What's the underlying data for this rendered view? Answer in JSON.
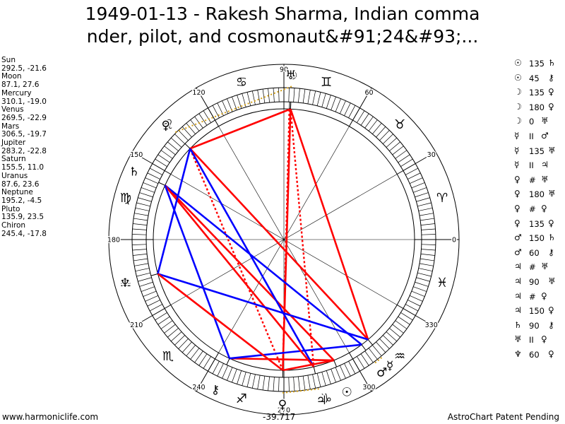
{
  "title": {
    "line1": "1949-01-13 - Rakesh Sharma, Indian comma",
    "line2": "nder, pilot, and cosmonaut&#91;24&#93;..."
  },
  "planets": [
    {
      "name": "Sun",
      "value": "292.5, -21.6"
    },
    {
      "name": "Moon",
      "value": "87.1, 27.6"
    },
    {
      "name": "Mercury",
      "value": "310.1, -19.0"
    },
    {
      "name": "Venus",
      "value": "269.5, -22.9"
    },
    {
      "name": "Mars",
      "value": "306.5, -19.7"
    },
    {
      "name": "Jupiter",
      "value": "283.2, -22.8"
    },
    {
      "name": "Saturn",
      "value": "155.5, 11.0"
    },
    {
      "name": "Uranus",
      "value": "87.6, 23.6"
    },
    {
      "name": "Neptune",
      "value": "195.2, -4.5"
    },
    {
      "name": "Pluto",
      "value": "135.9, 23.5"
    },
    {
      "name": "Chiron",
      "value": "245.4, -17.8"
    }
  ],
  "aspects": [
    {
      "p1": "☉",
      "angle": "135",
      "p2": "♄"
    },
    {
      "p1": "☉",
      "angle": "45",
      "p2": "⚷"
    },
    {
      "p1": "☽",
      "angle": "135",
      "p2": "♀"
    },
    {
      "p1": "☽",
      "angle": "180",
      "p2": "♀"
    },
    {
      "p1": "☽",
      "angle": "0",
      "p2": "♅"
    },
    {
      "p1": "☿",
      "angle": "II",
      "p2": "♂"
    },
    {
      "p1": "☿",
      "angle": "135",
      "p2": "♅"
    },
    {
      "p1": "☿",
      "angle": "II",
      "p2": "♃"
    },
    {
      "p1": "♀",
      "angle": "#",
      "p2": "♅"
    },
    {
      "p1": "♀",
      "angle": "180",
      "p2": "♅"
    },
    {
      "p1": "♀",
      "angle": "#",
      "p2": "♀"
    },
    {
      "p1": "♀",
      "angle": "135",
      "p2": "♀"
    },
    {
      "p1": "♂",
      "angle": "150",
      "p2": "♄"
    },
    {
      "p1": "♂",
      "angle": "60",
      "p2": "⚷"
    },
    {
      "p1": "♃",
      "angle": "#",
      "p2": "♅"
    },
    {
      "p1": "♃",
      "angle": "90",
      "p2": "♅"
    },
    {
      "p1": "♃",
      "angle": "#",
      "p2": "♀"
    },
    {
      "p1": "♃",
      "angle": "150",
      "p2": "♀"
    },
    {
      "p1": "♄",
      "angle": "90",
      "p2": "⚷"
    },
    {
      "p1": "♅",
      "angle": "II",
      "p2": "♀"
    },
    {
      "p1": "♆",
      "angle": "60",
      "p2": "♀"
    }
  ],
  "chart_data": {
    "type": "astrological-wheel",
    "degree_labels": [
      "0",
      "30",
      "60",
      "90",
      "120",
      "150",
      "180",
      "210",
      "240",
      "270",
      "300",
      "330"
    ],
    "zodiac_signs": [
      {
        "name": "aries-icon",
        "glyph": "♈",
        "start": 0
      },
      {
        "name": "taurus-icon",
        "glyph": "♉",
        "start": 30
      },
      {
        "name": "gemini-icon",
        "glyph": "♊",
        "start": 60
      },
      {
        "name": "cancer-icon",
        "glyph": "♋",
        "start": 90
      },
      {
        "name": "leo-icon",
        "glyph": "♌",
        "start": 120
      },
      {
        "name": "virgo-icon",
        "glyph": "♍",
        "start": 150
      },
      {
        "name": "libra-icon",
        "glyph": "♎",
        "start": 180
      },
      {
        "name": "scorpio-icon",
        "glyph": "♏",
        "start": 210
      },
      {
        "name": "sagittarius-icon",
        "glyph": "♐",
        "start": 240
      },
      {
        "name": "capricorn-icon",
        "glyph": "♑",
        "start": 270
      },
      {
        "name": "aquarius-icon",
        "glyph": "♒",
        "start": 300
      },
      {
        "name": "pisces-icon",
        "glyph": "♓",
        "start": 330
      }
    ],
    "bodies": [
      {
        "id": "sun",
        "glyph": "☉",
        "lon": 292.5
      },
      {
        "id": "moon",
        "glyph": "☽",
        "lon": 87.1
      },
      {
        "id": "mercury",
        "glyph": "☿",
        "lon": 310.1
      },
      {
        "id": "venus",
        "glyph": "♀",
        "lon": 269.5
      },
      {
        "id": "mars",
        "glyph": "♂",
        "lon": 306.5
      },
      {
        "id": "jupiter",
        "glyph": "♃",
        "lon": 283.2
      },
      {
        "id": "saturn",
        "glyph": "♄",
        "lon": 155.5
      },
      {
        "id": "uranus",
        "glyph": "♅",
        "lon": 87.6
      },
      {
        "id": "neptune",
        "glyph": "♆",
        "lon": 195.2
      },
      {
        "id": "pluto",
        "glyph": "♀",
        "lon": 135.9
      },
      {
        "id": "chiron",
        "glyph": "⚷",
        "lon": 245.4
      }
    ],
    "aspect_lines": [
      {
        "a": "sun",
        "b": "saturn",
        "color": "#ff0000",
        "style": "solid"
      },
      {
        "a": "sun",
        "b": "chiron",
        "color": "#ff0000",
        "style": "solid"
      },
      {
        "a": "moon",
        "b": "venus",
        "color": "#ff0000",
        "style": "solid"
      },
      {
        "a": "moon",
        "b": "mercury",
        "color": "#ff0000",
        "style": "solid"
      },
      {
        "a": "moon",
        "b": "jupiter",
        "color": "#ff0000",
        "style": "dotted"
      },
      {
        "a": "moon",
        "b": "pluto",
        "color": "#ff0000",
        "style": "solid"
      },
      {
        "a": "mercury",
        "b": "pluto",
        "color": "#ff0000",
        "style": "solid"
      },
      {
        "a": "venus",
        "b": "pluto",
        "color": "#ff0000",
        "style": "dotted"
      },
      {
        "a": "venus",
        "b": "uranus",
        "color": "#ff0000",
        "style": "dotted"
      },
      {
        "a": "mars",
        "b": "saturn",
        "color": "#0000ff",
        "style": "solid"
      },
      {
        "a": "mars",
        "b": "chiron",
        "color": "#0000ff",
        "style": "solid"
      },
      {
        "a": "jupiter",
        "b": "pluto",
        "color": "#0000ff",
        "style": "solid"
      },
      {
        "a": "jupiter",
        "b": "saturn",
        "color": "#ff0000",
        "style": "solid"
      },
      {
        "a": "saturn",
        "b": "chiron",
        "color": "#0000ff",
        "style": "solid"
      },
      {
        "a": "neptune",
        "b": "pluto",
        "color": "#0000ff",
        "style": "solid"
      },
      {
        "a": "neptune",
        "b": "mercury",
        "color": "#0000ff",
        "style": "solid"
      },
      {
        "a": "neptune",
        "b": "venus",
        "color": "#ff0000",
        "style": "solid"
      },
      {
        "a": "venus",
        "b": "sun",
        "color": "#ff0000",
        "style": "solid"
      }
    ],
    "colors": {
      "hard": "#ff0000",
      "soft": "#0000ff",
      "conjunction": "#d4a017"
    }
  },
  "footer": {
    "left": "www.harmoniclife.com",
    "center": "-39.717",
    "right": "AstroChart Patent Pending"
  }
}
